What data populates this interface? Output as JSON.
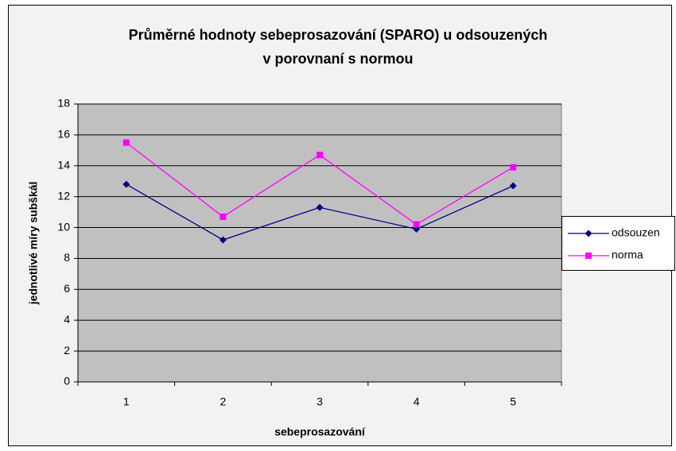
{
  "chart_data": {
    "type": "line",
    "title": [
      "Průměrné hodnoty sebeprosazování (SPARO) u odsouzených",
      "v porovnaní s normou"
    ],
    "x_label": "sebeprosazování",
    "y_label": "jednotlivé míry subškál",
    "categories": [
      "1",
      "2",
      "3",
      "4",
      "5"
    ],
    "series": [
      {
        "name": "odsouzen",
        "color": "#000080",
        "marker": "diamond",
        "values": [
          12.8,
          9.2,
          11.3,
          9.9,
          12.7
        ]
      },
      {
        "name": "norma",
        "color": "#ff00ff",
        "marker": "square",
        "values": [
          15.5,
          10.7,
          14.7,
          10.2,
          13.9
        ]
      }
    ],
    "ylim": [
      0,
      18
    ],
    "yticks": [
      0,
      2,
      4,
      6,
      8,
      10,
      12,
      14,
      16,
      18
    ],
    "grid": true,
    "legend": "right"
  }
}
